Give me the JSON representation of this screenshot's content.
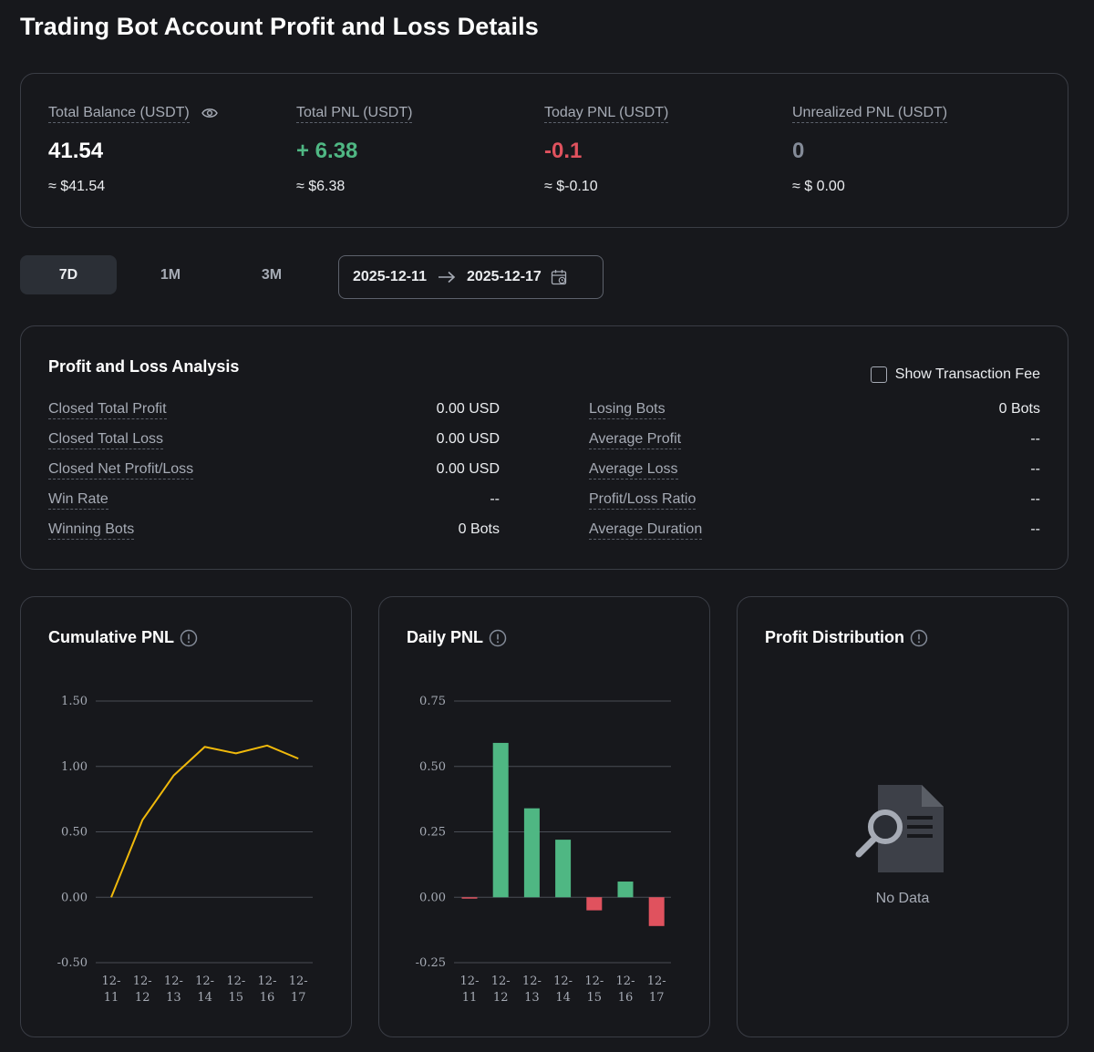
{
  "page": {
    "title": "Trading Bot Account Profit and Loss Details"
  },
  "summary": [
    {
      "label": "Total Balance (USDT)",
      "value": "41.54",
      "approx": "≈ $41.54",
      "color": "#ffffff",
      "icon": "eye-icon"
    },
    {
      "label": "Total PNL (USDT)",
      "value": "+ 6.38",
      "approx": "≈ $6.38",
      "color": "#4fb783"
    },
    {
      "label": "Today PNL (USDT)",
      "value": "-0.1",
      "approx": "≈ $-0.10",
      "color": "#e0525e"
    },
    {
      "label": "Unrealized PNL (USDT)",
      "value": "0",
      "approx": "≈ $ 0.00",
      "color": "#848b98"
    }
  ],
  "tabs": [
    "7D",
    "1M",
    "3M"
  ],
  "active_tab": "7D",
  "date_range": {
    "start": "2025-12-11",
    "end": "2025-12-17",
    "icon": "calendar-icon"
  },
  "analysis": {
    "title": "Profit and Loss Analysis",
    "fee_toggle_label": "Show Transaction Fee",
    "fee_toggle_checked": false,
    "left": [
      {
        "label": "Closed Total Profit",
        "value": "0.00 USD"
      },
      {
        "label": "Closed Total Loss",
        "value": "0.00 USD"
      },
      {
        "label": "Closed Net Profit/Loss",
        "value": "0.00 USD"
      },
      {
        "label": "Win Rate",
        "value": "--"
      },
      {
        "label": "Winning Bots",
        "value": "0 Bots"
      }
    ],
    "right": [
      {
        "label": "Losing Bots",
        "value": "0 Bots"
      },
      {
        "label": "Average Profit",
        "value": "--"
      },
      {
        "label": "Average Loss",
        "value": "--"
      },
      {
        "label": "Profit/Loss Ratio",
        "value": "--"
      },
      {
        "label": "Average Duration",
        "value": "--"
      }
    ]
  },
  "charts": {
    "cumulative_title": "Cumulative PNL",
    "daily_title": "Daily PNL",
    "distribution_title": "Profit Distribution",
    "no_data_label": "No Data"
  },
  "chart_data": [
    {
      "type": "line",
      "title": "Cumulative PNL",
      "categories": [
        "12-11",
        "12-12",
        "12-13",
        "12-14",
        "12-15",
        "12-16",
        "12-17"
      ],
      "values": [
        0.0,
        0.59,
        0.93,
        1.15,
        1.1,
        1.16,
        1.06
      ],
      "yticks": [
        "1.50",
        "1.00",
        "0.50",
        "0.00",
        "-0.50"
      ],
      "ylim": [
        -0.5,
        1.5
      ],
      "color": "#f0b90b",
      "grid": true
    },
    {
      "type": "bar",
      "title": "Daily PNL",
      "categories": [
        "12-11",
        "12-12",
        "12-13",
        "12-14",
        "12-15",
        "12-16",
        "12-17"
      ],
      "values": [
        -0.005,
        0.59,
        0.34,
        0.22,
        -0.05,
        0.06,
        -0.11
      ],
      "yticks": [
        "0.75",
        "0.50",
        "0.25",
        "0.00",
        "-0.25"
      ],
      "ylim": [
        -0.25,
        0.75
      ],
      "positive_color": "#4fb783",
      "negative_color": "#e0525e",
      "grid": true
    }
  ]
}
